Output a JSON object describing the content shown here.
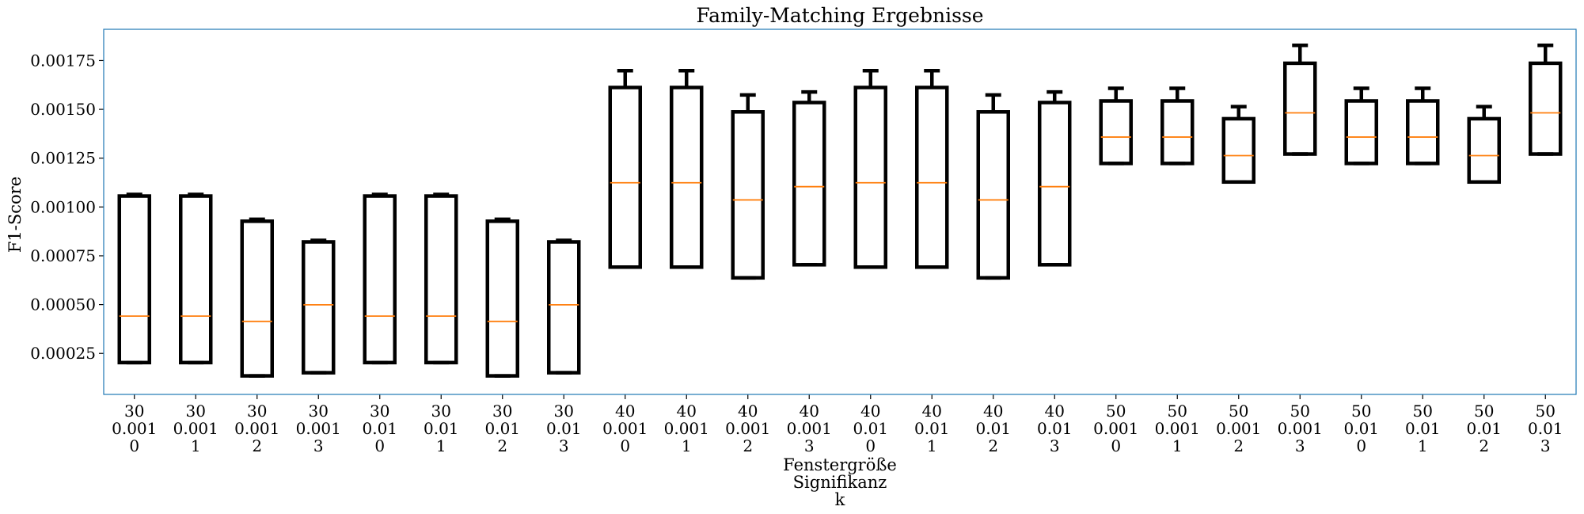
{
  "chart_data": {
    "type": "boxplot",
    "title": "Family-Matching Ergebnisse",
    "ylabel": "F1-Score",
    "xlabel_lines": [
      "Fenstergröße",
      "Signifikanz",
      "k"
    ],
    "ylim": [
      4e-05,
      0.00191
    ],
    "yticks": [
      {
        "value": 0.00025,
        "label": "0.00025"
      },
      {
        "value": 0.0005,
        "label": "0.00050"
      },
      {
        "value": 0.00075,
        "label": "0.00075"
      },
      {
        "value": 0.001,
        "label": "0.00100"
      },
      {
        "value": 0.00125,
        "label": "0.00125"
      },
      {
        "value": 0.0015,
        "label": "0.00150"
      },
      {
        "value": 0.00175,
        "label": "0.00175"
      }
    ],
    "grid": false,
    "colors": {
      "box": "#000000",
      "median": "#ff7f0e",
      "frame": "#1f77b4"
    },
    "boxes": [
      {
        "fenstergroesse": "30",
        "signifikanz": "0.001",
        "k": "0",
        "whislo": 0.000203,
        "q1": 0.000203,
        "median": 0.000441,
        "q3": 0.001056,
        "whishi": 0.001064
      },
      {
        "fenstergroesse": "30",
        "signifikanz": "0.001",
        "k": "1",
        "whislo": 0.000203,
        "q1": 0.000203,
        "median": 0.000441,
        "q3": 0.001056,
        "whishi": 0.001064
      },
      {
        "fenstergroesse": "30",
        "signifikanz": "0.001",
        "k": "2",
        "whislo": 0.000135,
        "q1": 0.000135,
        "median": 0.000414,
        "q3": 0.000927,
        "whishi": 0.000937
      },
      {
        "fenstergroesse": "30",
        "signifikanz": "0.001",
        "k": "3",
        "whislo": 0.000151,
        "q1": 0.000151,
        "median": 0.000499,
        "q3": 0.000821,
        "whishi": 0.000829
      },
      {
        "fenstergroesse": "30",
        "signifikanz": "0.01",
        "k": "0",
        "whislo": 0.000203,
        "q1": 0.000203,
        "median": 0.000441,
        "q3": 0.001056,
        "whishi": 0.001064
      },
      {
        "fenstergroesse": "30",
        "signifikanz": "0.01",
        "k": "1",
        "whislo": 0.000203,
        "q1": 0.000203,
        "median": 0.000441,
        "q3": 0.001056,
        "whishi": 0.001064
      },
      {
        "fenstergroesse": "30",
        "signifikanz": "0.01",
        "k": "2",
        "whislo": 0.000135,
        "q1": 0.000135,
        "median": 0.000414,
        "q3": 0.000927,
        "whishi": 0.000937
      },
      {
        "fenstergroesse": "30",
        "signifikanz": "0.01",
        "k": "3",
        "whislo": 0.000151,
        "q1": 0.000151,
        "median": 0.000499,
        "q3": 0.000821,
        "whishi": 0.000829
      },
      {
        "fenstergroesse": "40",
        "signifikanz": "0.001",
        "k": "0",
        "whislo": 0.000692,
        "q1": 0.000692,
        "median": 0.001124,
        "q3": 0.001612,
        "whishi": 0.001698
      },
      {
        "fenstergroesse": "40",
        "signifikanz": "0.001",
        "k": "1",
        "whislo": 0.000692,
        "q1": 0.000692,
        "median": 0.001124,
        "q3": 0.001612,
        "whishi": 0.001698
      },
      {
        "fenstergroesse": "40",
        "signifikanz": "0.001",
        "k": "2",
        "whislo": 0.000637,
        "q1": 0.000637,
        "median": 0.001036,
        "q3": 0.001487,
        "whishi": 0.001574
      },
      {
        "fenstergroesse": "40",
        "signifikanz": "0.001",
        "k": "3",
        "whislo": 0.000704,
        "q1": 0.000704,
        "median": 0.001104,
        "q3": 0.001535,
        "whishi": 0.001589
      },
      {
        "fenstergroesse": "40",
        "signifikanz": "0.01",
        "k": "0",
        "whislo": 0.000692,
        "q1": 0.000692,
        "median": 0.001124,
        "q3": 0.001612,
        "whishi": 0.001698
      },
      {
        "fenstergroesse": "40",
        "signifikanz": "0.01",
        "k": "1",
        "whislo": 0.000692,
        "q1": 0.000692,
        "median": 0.001124,
        "q3": 0.001612,
        "whishi": 0.001698
      },
      {
        "fenstergroesse": "40",
        "signifikanz": "0.01",
        "k": "2",
        "whislo": 0.000637,
        "q1": 0.000637,
        "median": 0.001036,
        "q3": 0.001487,
        "whishi": 0.001574
      },
      {
        "fenstergroesse": "40",
        "signifikanz": "0.01",
        "k": "3",
        "whislo": 0.000704,
        "q1": 0.000704,
        "median": 0.001104,
        "q3": 0.001535,
        "whishi": 0.001589
      },
      {
        "fenstergroesse": "50",
        "signifikanz": "0.001",
        "k": "0",
        "whislo": 0.001223,
        "q1": 0.001223,
        "median": 0.001358,
        "q3": 0.001543,
        "whishi": 0.001608
      },
      {
        "fenstergroesse": "50",
        "signifikanz": "0.001",
        "k": "1",
        "whislo": 0.001223,
        "q1": 0.001223,
        "median": 0.001358,
        "q3": 0.001543,
        "whishi": 0.001608
      },
      {
        "fenstergroesse": "50",
        "signifikanz": "0.001",
        "k": "2",
        "whislo": 0.001128,
        "q1": 0.001128,
        "median": 0.001263,
        "q3": 0.001452,
        "whishi": 0.001514
      },
      {
        "fenstergroesse": "50",
        "signifikanz": "0.001",
        "k": "3",
        "whislo": 0.001271,
        "q1": 0.001271,
        "median": 0.001482,
        "q3": 0.001736,
        "whishi": 0.001828
      },
      {
        "fenstergroesse": "50",
        "signifikanz": "0.01",
        "k": "0",
        "whislo": 0.001223,
        "q1": 0.001223,
        "median": 0.001358,
        "q3": 0.001543,
        "whishi": 0.001608
      },
      {
        "fenstergroesse": "50",
        "signifikanz": "0.01",
        "k": "1",
        "whislo": 0.001223,
        "q1": 0.001223,
        "median": 0.001358,
        "q3": 0.001543,
        "whishi": 0.001608
      },
      {
        "fenstergroesse": "50",
        "signifikanz": "0.01",
        "k": "2",
        "whislo": 0.001128,
        "q1": 0.001128,
        "median": 0.001263,
        "q3": 0.001452,
        "whishi": 0.001514
      },
      {
        "fenstergroesse": "50",
        "signifikanz": "0.01",
        "k": "3",
        "whislo": 0.001271,
        "q1": 0.001271,
        "median": 0.001482,
        "q3": 0.001736,
        "whishi": 0.001828
      }
    ]
  }
}
